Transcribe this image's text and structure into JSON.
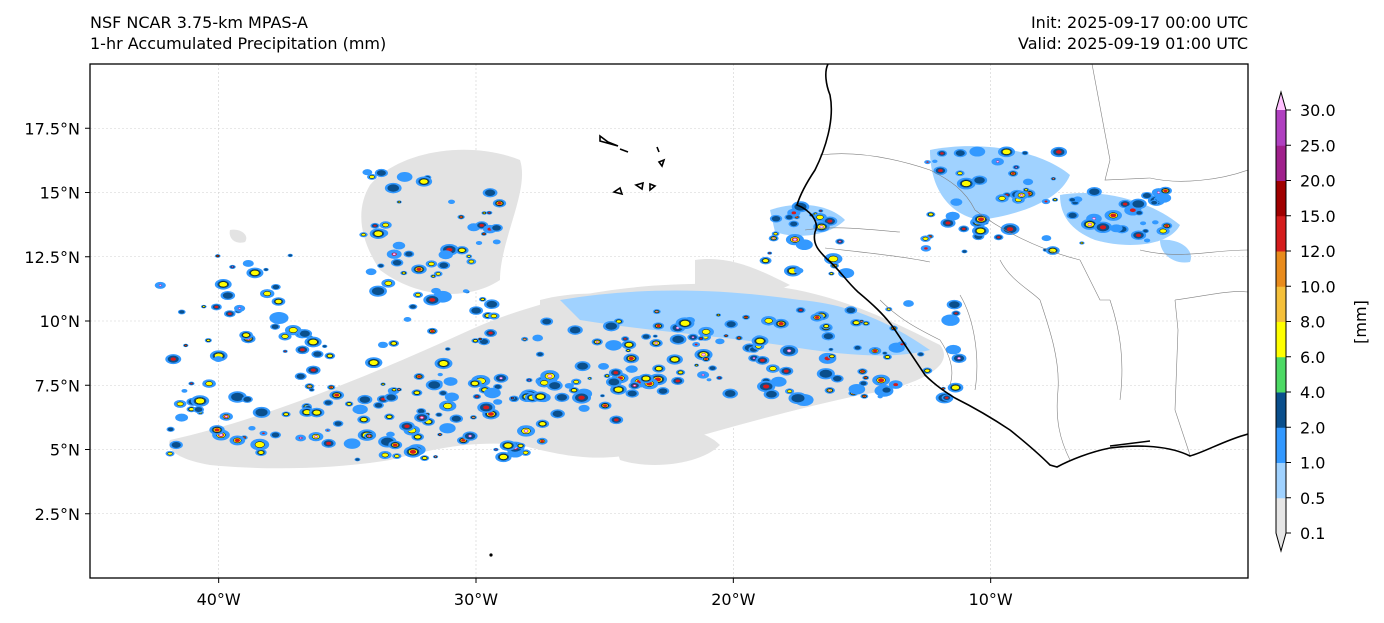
{
  "header": {
    "model": "NSF NCAR 3.75-km MPAS-A",
    "field": "1-hr Accumulated Precipitation (mm)",
    "init": "Init: 2025-09-17 00:00 UTC",
    "valid": "Valid: 2025-09-19 01:00 UTC"
  },
  "map": {
    "lon_range": [
      -45,
      0
    ],
    "lat_range": [
      0,
      20
    ],
    "lon_ticks": [
      {
        "lon": -40,
        "label": "40°W"
      },
      {
        "lon": -30,
        "label": "30°W"
      },
      {
        "lon": -20,
        "label": "20°W"
      },
      {
        "lon": -10,
        "label": "10°W"
      }
    ],
    "lat_ticks": [
      {
        "lat": 17.5,
        "label": "17.5°N"
      },
      {
        "lat": 15,
        "label": "15°N"
      },
      {
        "lat": 12.5,
        "label": "12.5°N"
      },
      {
        "lat": 10,
        "label": "10°N"
      },
      {
        "lat": 7.5,
        "label": "7.5°N"
      },
      {
        "lat": 5,
        "label": "5°N"
      },
      {
        "lat": 2.5,
        "label": "2.5°N"
      }
    ],
    "gridlines": true,
    "coastline_color": "#000000",
    "border_color": "#808080"
  },
  "colorbar": {
    "unit_label": "[mm]",
    "levels": [
      "0.1",
      "0.5",
      "1.0",
      "2.0",
      "4.0",
      "6.0",
      "8.0",
      "10.0",
      "12.0",
      "15.0",
      "20.0",
      "25.0",
      "30.0"
    ],
    "colors": [
      "#e6e6e6",
      "#a0d2ff",
      "#3399ff",
      "#0a4f8c",
      "#4cd964",
      "#ffff00",
      "#f5c03a",
      "#e88b1c",
      "#d41c1c",
      "#a00000",
      "#a0208c",
      "#b040c0",
      "#ffc0ff"
    ],
    "extend": "both"
  }
}
